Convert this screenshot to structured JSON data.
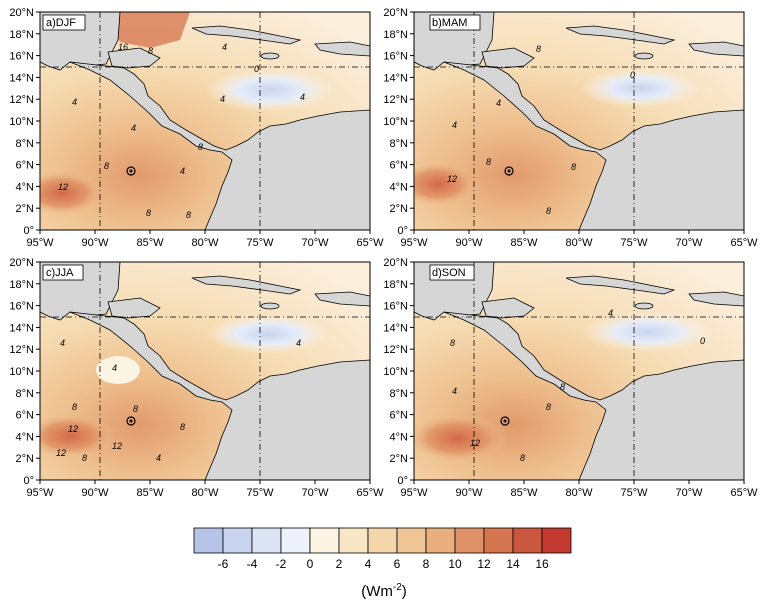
{
  "panels": [
    {
      "id": "djf",
      "label": "a)DJF"
    },
    {
      "id": "mam",
      "label": "b)MAM"
    },
    {
      "id": "jja",
      "label": "c)JJA"
    },
    {
      "id": "son",
      "label": "d)SON"
    }
  ],
  "lon_ticks": [
    "95°W",
    "90°W",
    "85°W",
    "80°W",
    "75°W",
    "70°W",
    "65°W"
  ],
  "lat_ticks": [
    "0°",
    "2°N",
    "4°N",
    "6°N",
    "8°N",
    "10°N",
    "12°N",
    "14°N",
    "16°N",
    "18°N",
    "20°N"
  ],
  "colorbar": {
    "labels": [
      "-6",
      "-4",
      "-2",
      "0",
      "2",
      "4",
      "6",
      "8",
      "10",
      "12",
      "14",
      "16"
    ],
    "colors": [
      "#b7c3e6",
      "#c9d4ee",
      "#dbe3f4",
      "#ecf1fa",
      "#fdf5e4",
      "#f9e6c6",
      "#f4d6ab",
      "#efc595",
      "#e9af7d",
      "#df9265",
      "#d67651",
      "#cb5640",
      "#c43a30"
    ],
    "unit_main": "(Wm",
    "unit_sup": "-2",
    "unit_close": ")"
  },
  "land_color": "#d6d6d6",
  "contour_labels": {
    "djf": [
      "4",
      "4",
      "8",
      "12",
      "8",
      "8",
      "4",
      "4",
      "8",
      "0",
      "4",
      "16",
      "8",
      "4"
    ],
    "mam": [
      "8",
      "8",
      "4",
      "4",
      "12",
      "8",
      "0",
      "8"
    ],
    "jja": [
      "4",
      "4",
      "8",
      "12",
      "12",
      "8",
      "8",
      "4",
      "12",
      "8",
      "4"
    ],
    "son": [
      "8",
      "4",
      "12",
      "8",
      "0",
      "8",
      "4",
      "8"
    ]
  }
}
